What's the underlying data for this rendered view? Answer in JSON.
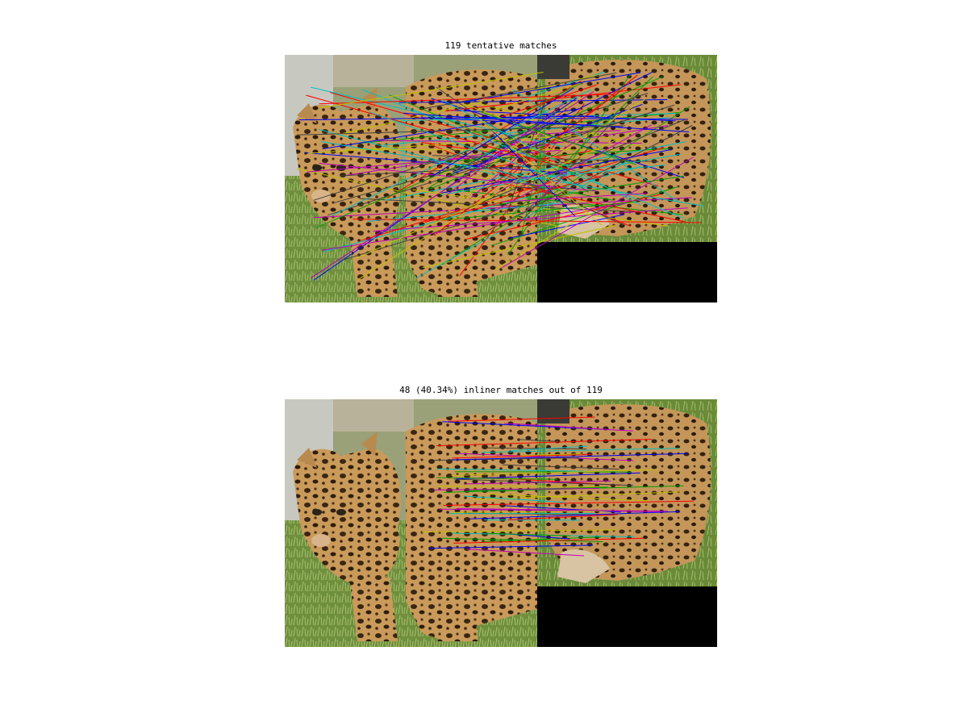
{
  "figure": {
    "top_panel": {
      "title": "119 tentative matches",
      "match_count": 119
    },
    "bottom_panel": {
      "title": "48 (40.34%) inliner matches out of 119",
      "match_count": 48,
      "inlier_percent": 40.34,
      "total_matches": 119
    },
    "line_colors": [
      "#ff0000",
      "#00a000",
      "#0000ff",
      "#00bfbf",
      "#bf00bf",
      "#bfbf00",
      "#404040"
    ]
  }
}
